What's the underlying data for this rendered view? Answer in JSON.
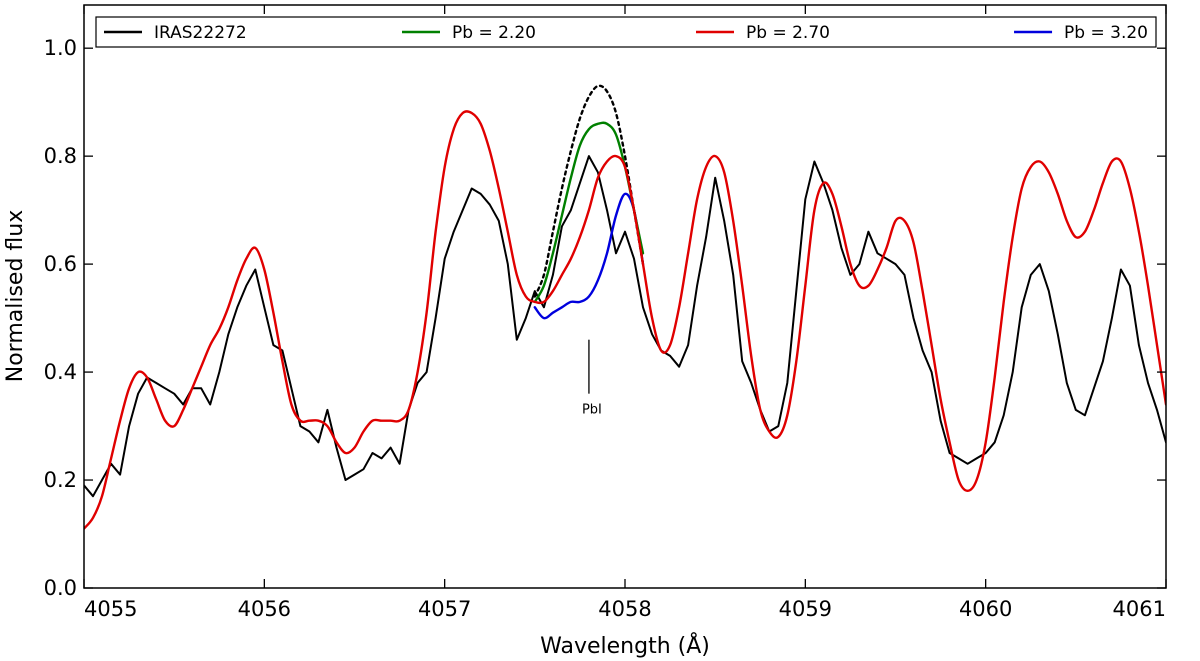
{
  "chart_data": {
    "type": "line",
    "xlabel": "Wavelength (Å)",
    "ylabel": "Normalised flux",
    "xlim": [
      4055,
      4061
    ],
    "ylim": [
      0.0,
      1.08
    ],
    "x_ticks": [
      4055,
      4056,
      4057,
      4058,
      4059,
      4060,
      4061
    ],
    "x_tick_labels": [
      "4055",
      "4056",
      "4057",
      "4058",
      "4059",
      "4060",
      "4061"
    ],
    "y_ticks": [
      0.0,
      0.2,
      0.4,
      0.6,
      0.8,
      1.0
    ],
    "y_tick_labels": [
      "0.0",
      "0.2",
      "0.4",
      "0.6",
      "0.8",
      "1.0"
    ],
    "grid": false,
    "legend_position": "top",
    "annotation": {
      "text": "PbI",
      "x": 4057.8,
      "y_from": 0.36,
      "y_to": 0.46
    },
    "series": [
      {
        "name": "IRAS22272",
        "color": "#000000",
        "style": "solid",
        "x": [
          4055.0,
          4055.05,
          4055.1,
          4055.15,
          4055.2,
          4055.25,
          4055.3,
          4055.35,
          4055.4,
          4055.45,
          4055.5,
          4055.55,
          4055.6,
          4055.65,
          4055.7,
          4055.75,
          4055.8,
          4055.85,
          4055.9,
          4055.95,
          4056.0,
          4056.05,
          4056.1,
          4056.15,
          4056.2,
          4056.25,
          4056.3,
          4056.35,
          4056.4,
          4056.45,
          4056.5,
          4056.55,
          4056.6,
          4056.65,
          4056.7,
          4056.75,
          4056.8,
          4056.85,
          4056.9,
          4056.95,
          4057.0,
          4057.05,
          4057.1,
          4057.15,
          4057.2,
          4057.25,
          4057.3,
          4057.35,
          4057.4,
          4057.45,
          4057.5,
          4057.55,
          4057.6,
          4057.65,
          4057.7,
          4057.75,
          4057.8,
          4057.85,
          4057.9,
          4057.95,
          4058.0,
          4058.05,
          4058.1,
          4058.15,
          4058.2,
          4058.25,
          4058.3,
          4058.35,
          4058.4,
          4058.45,
          4058.5,
          4058.55,
          4058.6,
          4058.65,
          4058.7,
          4058.75,
          4058.8,
          4058.85,
          4058.9,
          4058.95,
          4059.0,
          4059.05,
          4059.1,
          4059.15,
          4059.2,
          4059.25,
          4059.3,
          4059.35,
          4059.4,
          4059.45,
          4059.5,
          4059.55,
          4059.6,
          4059.65,
          4059.7,
          4059.75,
          4059.8,
          4059.85,
          4059.9,
          4059.95,
          4060.0,
          4060.05,
          4060.1,
          4060.15,
          4060.2,
          4060.25,
          4060.3,
          4060.35,
          4060.4,
          4060.45,
          4060.5,
          4060.55,
          4060.6,
          4060.65,
          4060.7,
          4060.75,
          4060.8,
          4060.85,
          4060.9,
          4060.95,
          4061.0
        ],
        "y": [
          0.19,
          0.17,
          0.2,
          0.23,
          0.21,
          0.3,
          0.36,
          0.39,
          0.38,
          0.37,
          0.36,
          0.34,
          0.37,
          0.37,
          0.34,
          0.4,
          0.47,
          0.52,
          0.56,
          0.59,
          0.52,
          0.45,
          0.44,
          0.37,
          0.3,
          0.29,
          0.27,
          0.33,
          0.26,
          0.2,
          0.21,
          0.22,
          0.25,
          0.24,
          0.26,
          0.23,
          0.33,
          0.38,
          0.4,
          0.5,
          0.61,
          0.66,
          0.7,
          0.74,
          0.73,
          0.71,
          0.68,
          0.6,
          0.46,
          0.5,
          0.55,
          0.52,
          0.58,
          0.67,
          0.7,
          0.75,
          0.8,
          0.77,
          0.7,
          0.62,
          0.66,
          0.61,
          0.52,
          0.47,
          0.44,
          0.43,
          0.41,
          0.45,
          0.56,
          0.65,
          0.76,
          0.68,
          0.58,
          0.42,
          0.38,
          0.33,
          0.29,
          0.3,
          0.38,
          0.55,
          0.72,
          0.79,
          0.75,
          0.7,
          0.63,
          0.58,
          0.6,
          0.66,
          0.62,
          0.61,
          0.6,
          0.58,
          0.5,
          0.44,
          0.4,
          0.31,
          0.25,
          0.24,
          0.23,
          0.24,
          0.25,
          0.27,
          0.32,
          0.4,
          0.52,
          0.58,
          0.6,
          0.55,
          0.47,
          0.38,
          0.33,
          0.32,
          0.37,
          0.42,
          0.5,
          0.59,
          0.56,
          0.45,
          0.38,
          0.33,
          0.27
        ]
      },
      {
        "name": "Pb = 2.20",
        "color": "#008000",
        "style": "solid",
        "x": [
          4057.5,
          4057.55,
          4057.6,
          4057.65,
          4057.7,
          4057.75,
          4057.8,
          4057.85,
          4057.9,
          4057.95,
          4058.0,
          4058.05,
          4058.1
        ],
        "y": [
          0.53,
          0.56,
          0.62,
          0.69,
          0.76,
          0.82,
          0.85,
          0.86,
          0.86,
          0.84,
          0.78,
          0.7,
          0.62
        ]
      },
      {
        "name": "Pb = 2.70",
        "color": "#e00000",
        "style": "solid",
        "x": [
          4055.0,
          4055.05,
          4055.1,
          4055.15,
          4055.2,
          4055.25,
          4055.3,
          4055.35,
          4055.4,
          4055.45,
          4055.5,
          4055.55,
          4055.6,
          4055.65,
          4055.7,
          4055.75,
          4055.8,
          4055.85,
          4055.9,
          4055.95,
          4056.0,
          4056.05,
          4056.1,
          4056.15,
          4056.2,
          4056.25,
          4056.3,
          4056.35,
          4056.4,
          4056.45,
          4056.5,
          4056.55,
          4056.6,
          4056.65,
          4056.7,
          4056.75,
          4056.8,
          4056.85,
          4056.9,
          4056.95,
          4057.0,
          4057.05,
          4057.1,
          4057.15,
          4057.2,
          4057.25,
          4057.3,
          4057.35,
          4057.4,
          4057.45,
          4057.5,
          4057.55,
          4057.6,
          4057.65,
          4057.7,
          4057.75,
          4057.8,
          4057.85,
          4057.9,
          4057.95,
          4058.0,
          4058.05,
          4058.1,
          4058.15,
          4058.2,
          4058.25,
          4058.3,
          4058.35,
          4058.4,
          4058.45,
          4058.5,
          4058.55,
          4058.6,
          4058.65,
          4058.7,
          4058.75,
          4058.8,
          4058.85,
          4058.9,
          4058.95,
          4059.0,
          4059.05,
          4059.1,
          4059.15,
          4059.2,
          4059.25,
          4059.3,
          4059.35,
          4059.4,
          4059.45,
          4059.5,
          4059.55,
          4059.6,
          4059.65,
          4059.7,
          4059.75,
          4059.8,
          4059.85,
          4059.9,
          4059.95,
          4060.0,
          4060.05,
          4060.1,
          4060.15,
          4060.2,
          4060.25,
          4060.3,
          4060.35,
          4060.4,
          4060.45,
          4060.5,
          4060.55,
          4060.6,
          4060.65,
          4060.7,
          4060.75,
          4060.8,
          4060.85,
          4060.9,
          4060.95,
          4061.0
        ],
        "y": [
          0.11,
          0.13,
          0.17,
          0.24,
          0.31,
          0.37,
          0.4,
          0.39,
          0.35,
          0.31,
          0.3,
          0.33,
          0.37,
          0.41,
          0.45,
          0.48,
          0.52,
          0.57,
          0.61,
          0.63,
          0.59,
          0.51,
          0.42,
          0.34,
          0.31,
          0.31,
          0.31,
          0.3,
          0.27,
          0.25,
          0.26,
          0.29,
          0.31,
          0.31,
          0.31,
          0.31,
          0.33,
          0.4,
          0.51,
          0.66,
          0.78,
          0.85,
          0.88,
          0.88,
          0.86,
          0.81,
          0.74,
          0.66,
          0.58,
          0.54,
          0.53,
          0.53,
          0.55,
          0.58,
          0.61,
          0.65,
          0.7,
          0.76,
          0.79,
          0.8,
          0.78,
          0.7,
          0.6,
          0.5,
          0.44,
          0.45,
          0.52,
          0.62,
          0.72,
          0.78,
          0.8,
          0.77,
          0.68,
          0.56,
          0.43,
          0.33,
          0.29,
          0.28,
          0.32,
          0.42,
          0.56,
          0.7,
          0.75,
          0.73,
          0.67,
          0.6,
          0.56,
          0.56,
          0.59,
          0.63,
          0.68,
          0.68,
          0.64,
          0.55,
          0.45,
          0.35,
          0.27,
          0.2,
          0.18,
          0.2,
          0.27,
          0.39,
          0.53,
          0.65,
          0.74,
          0.78,
          0.79,
          0.77,
          0.73,
          0.68,
          0.65,
          0.66,
          0.7,
          0.75,
          0.79,
          0.79,
          0.74,
          0.66,
          0.56,
          0.45,
          0.34
        ]
      },
      {
        "name": "Pb = 3.20",
        "color": "#0000dd",
        "style": "solid",
        "x": [
          4057.5,
          4057.55,
          4057.6,
          4057.65,
          4057.7,
          4057.75,
          4057.8,
          4057.85,
          4057.9,
          4057.95,
          4058.0,
          4058.05,
          4058.1
        ],
        "y": [
          0.52,
          0.5,
          0.51,
          0.52,
          0.53,
          0.53,
          0.54,
          0.57,
          0.62,
          0.69,
          0.73,
          0.7,
          0.6
        ]
      },
      {
        "name": "",
        "color": "#000000",
        "style": "dotted",
        "x": [
          4057.5,
          4057.55,
          4057.6,
          4057.65,
          4057.7,
          4057.75,
          4057.8,
          4057.85,
          4057.9,
          4057.95,
          4058.0,
          4058.05,
          4058.1
        ],
        "y": [
          0.54,
          0.58,
          0.66,
          0.74,
          0.81,
          0.87,
          0.91,
          0.93,
          0.92,
          0.88,
          0.8,
          0.7,
          0.6
        ]
      }
    ]
  }
}
